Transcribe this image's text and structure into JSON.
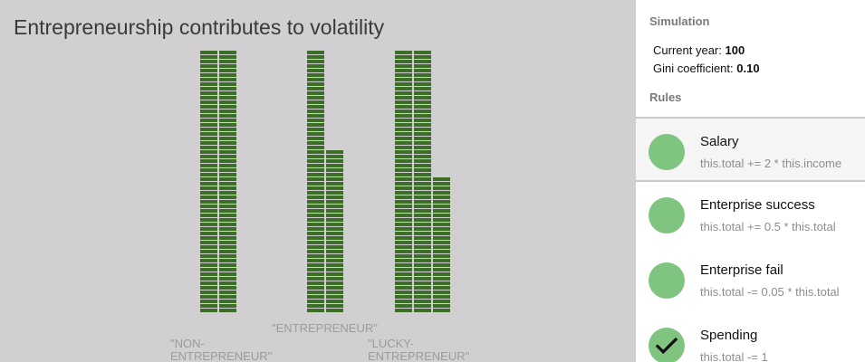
{
  "title": "Entrepreneurship contributes to volatility",
  "categories": [
    {
      "label": "\"NON-\nENTREPRENEUR\"",
      "stacks": [
        58,
        58
      ]
    },
    {
      "label": "\"ENTREPRENEUR\"",
      "stacks": [
        58,
        36
      ]
    },
    {
      "label": "\"LUCKY-\nENTREPRENEUR\"",
      "stacks": [
        58,
        58,
        30
      ]
    }
  ],
  "colors": {
    "brick": "#3d6e28",
    "background": "#d1cfd1",
    "rule_dot": "#7fc47f"
  },
  "panel": {
    "simulation_title": "Simulation",
    "current_year_label": "Current year:",
    "current_year_value": "100",
    "gini_label": "Gini coefficient:",
    "gini_value": "0.10",
    "rules_title": "Rules",
    "rules": [
      {
        "name": "Salary",
        "code": "this.total += 2 * this.income",
        "selected": true,
        "checked": false
      },
      {
        "name": "Enterprise success",
        "code": "this.total += 0.5 * this.total",
        "selected": false,
        "checked": false
      },
      {
        "name": "Enterprise fail",
        "code": "this.total -= 0.05 * this.total",
        "selected": false,
        "checked": false
      },
      {
        "name": "Spending",
        "code": "this.total -= 1",
        "selected": false,
        "checked": true
      }
    ]
  }
}
